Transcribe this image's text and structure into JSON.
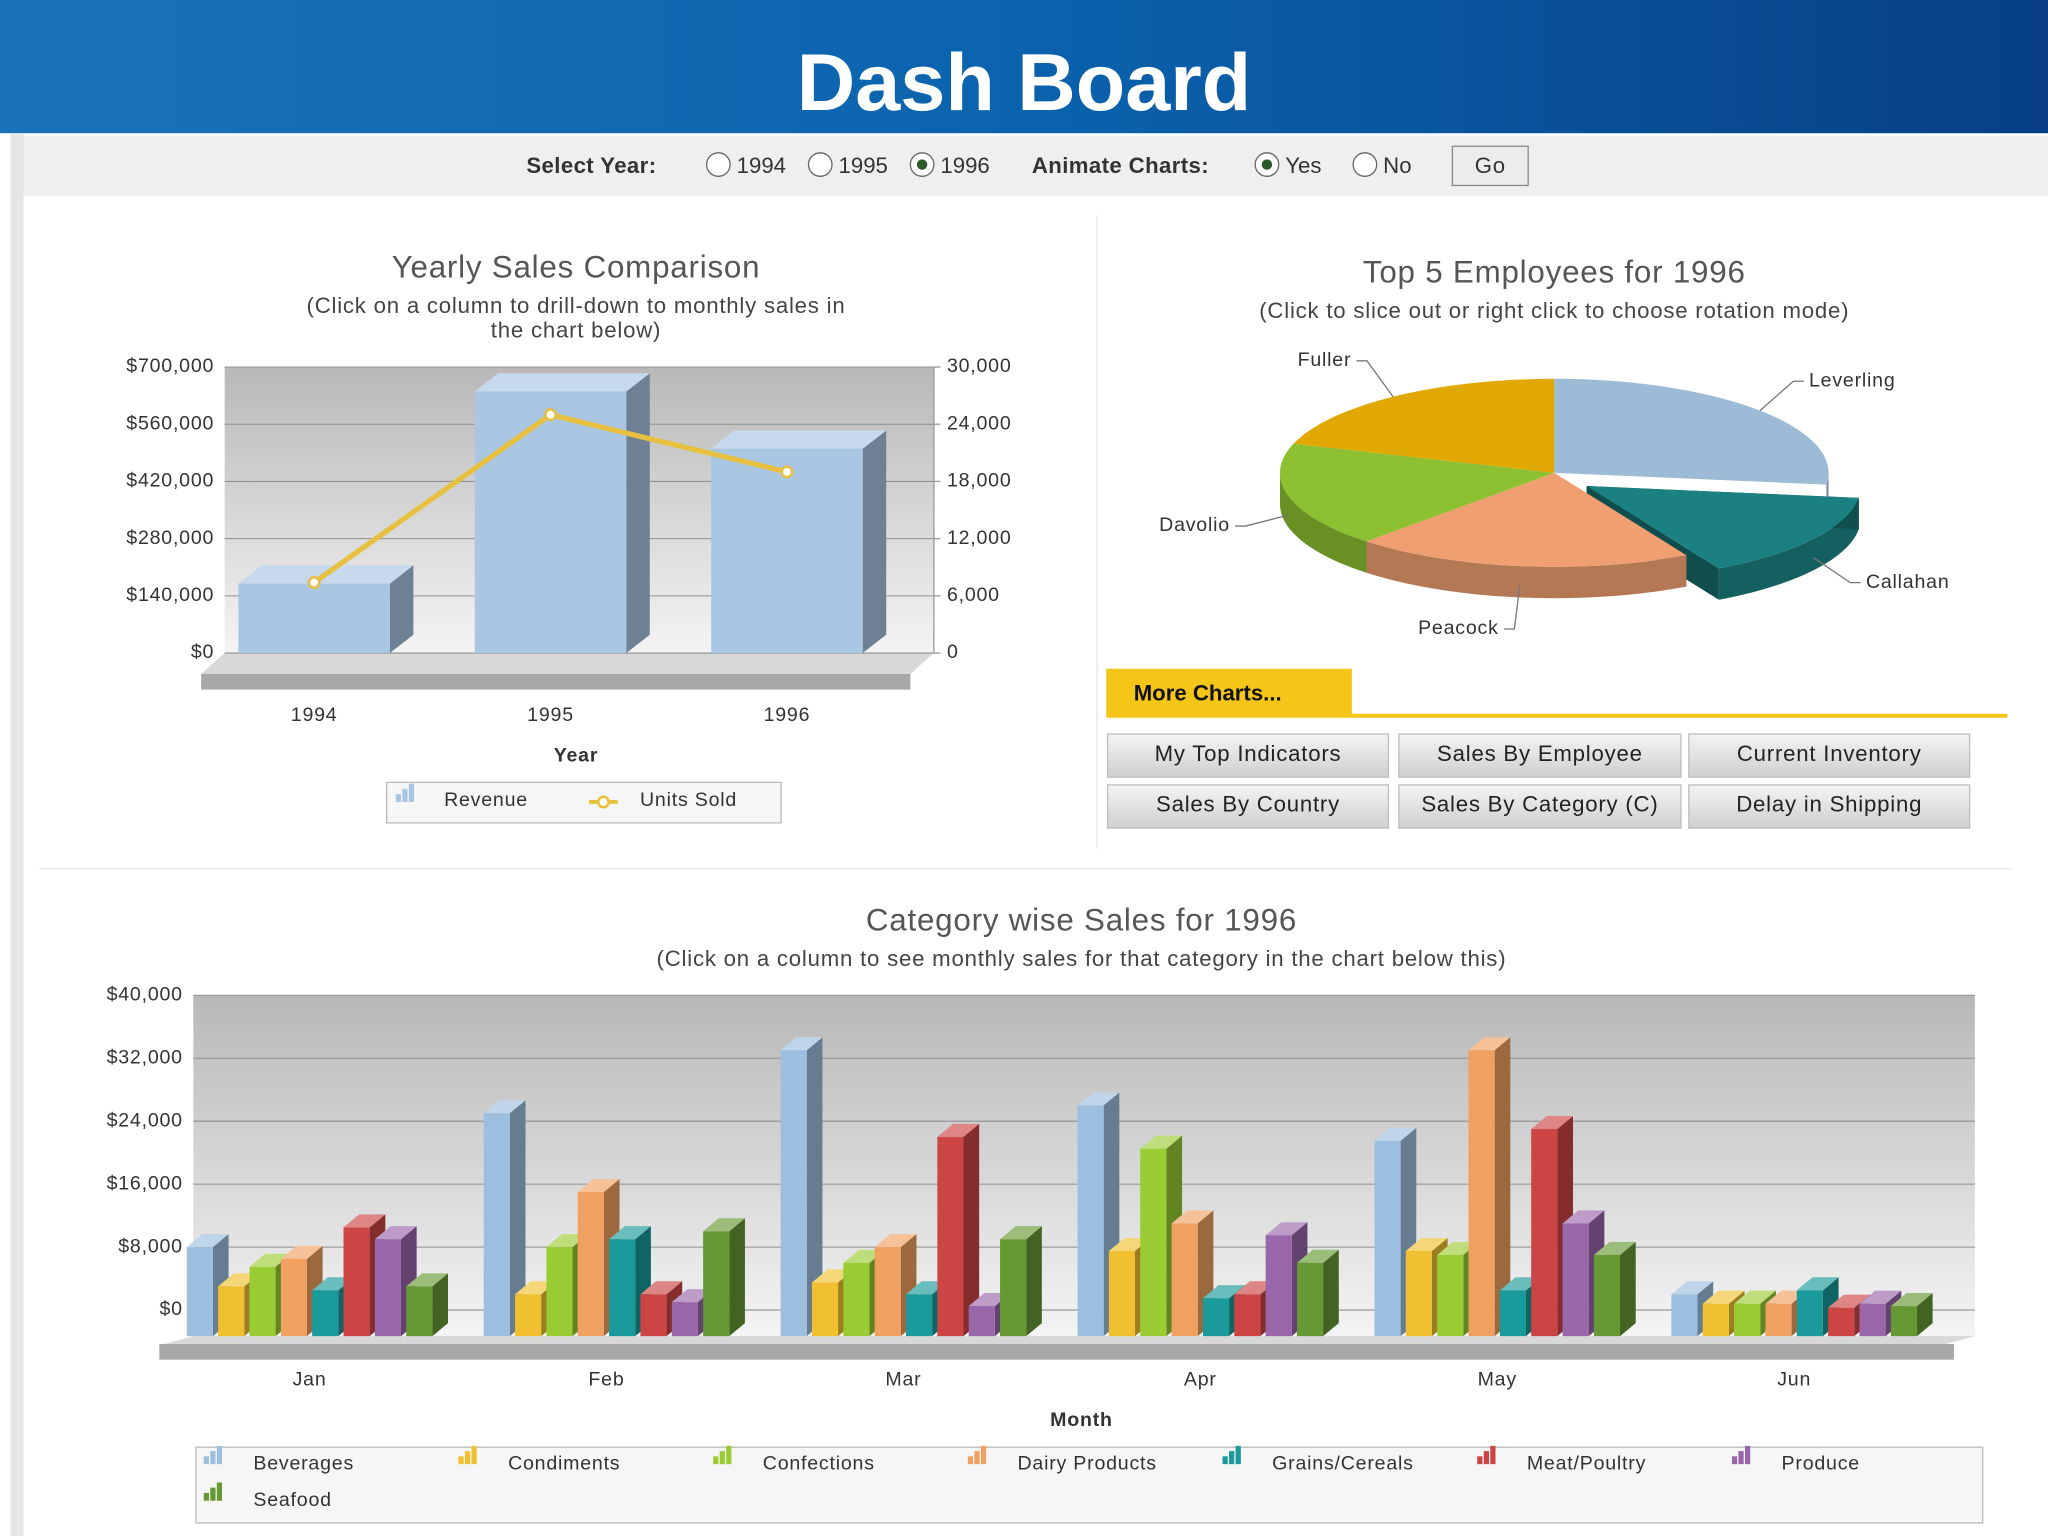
{
  "header": {
    "title": "Dash Board"
  },
  "controls": {
    "year_label": "Select Year:",
    "years": [
      "1994",
      "1995",
      "1996"
    ],
    "selected_year": 2,
    "animate_label": "Animate Charts:",
    "animate_options": [
      "Yes",
      "No"
    ],
    "animate_selected": 0,
    "go": "Go"
  },
  "chart_data": [
    {
      "type": "bar-line",
      "title": "Yearly Sales Comparison",
      "subtitle": [
        "(Click on a column to drill-down to monthly sales in",
        "the chart below)"
      ],
      "x_label": "Year",
      "categories": [
        "1994",
        "1995",
        "1996"
      ],
      "series": [
        {
          "name": "Revenue",
          "color": "#a9c6e3",
          "values": [
            170000,
            640000,
            500000
          ]
        },
        {
          "name": "Units Sold",
          "color": "#e8c040",
          "axis": "y2",
          "values": [
            7400,
            25000,
            19000
          ]
        }
      ],
      "ylim": [
        0,
        700000
      ],
      "yticks": [
        {
          "value": 0,
          "label": "$0"
        },
        {
          "value": 140000,
          "label": "$140,000"
        },
        {
          "value": 280000,
          "label": "$280,000"
        },
        {
          "value": 420000,
          "label": "$420,000"
        },
        {
          "value": 560000,
          "label": "$560,000"
        },
        {
          "value": 700000,
          "label": "$700,000"
        }
      ],
      "y2lim": [
        0,
        30000
      ],
      "y2ticks": [
        0,
        {
          "value": 6000,
          "label": "6,000"
        },
        {
          "value": 12000,
          "label": "12,000"
        },
        {
          "value": 18000,
          "label": "18,000"
        },
        {
          "value": 24000,
          "label": "24,000"
        },
        {
          "value": 30000,
          "label": "30,000"
        }
      ],
      "grid": true
    },
    {
      "type": "pie",
      "title": "Top 5 Employees for 1996",
      "subtitle": "(Click to slice out or right click to choose rotation mode)",
      "categories": [
        "Leverling",
        "Callahan",
        "Peacock",
        "Davolio",
        "Fuller"
      ],
      "values": [
        27,
        15,
        20,
        18,
        20
      ],
      "colors": [
        "#9dbbd6",
        "#1a8080",
        "#f0a070",
        "#8cc030",
        "#e0a800"
      ],
      "exploded_index": 1
    },
    {
      "type": "bar",
      "title": "Category wise Sales for 1996",
      "subtitle": "(Click on a column to see monthly sales for that category in the chart below this)",
      "x_label": "Month",
      "categories": [
        "Jan",
        "Feb",
        "Mar",
        "Apr",
        "May",
        "Jun"
      ],
      "series": [
        {
          "name": "Beverages",
          "color": "#9cbfdf",
          "values": [
            8000,
            25000,
            33000,
            26000,
            21500,
            2000
          ]
        },
        {
          "name": "Condiments",
          "color": "#f0c030",
          "values": [
            3000,
            2000,
            3500,
            7500,
            7500,
            800
          ]
        },
        {
          "name": "Confections",
          "color": "#99cc33",
          "values": [
            5500,
            8000,
            6000,
            20500,
            7000,
            800
          ]
        },
        {
          "name": "Dairy Products",
          "color": "#f0a060",
          "values": [
            6500,
            15000,
            8000,
            11000,
            33000,
            800
          ]
        },
        {
          "name": "Grains/Cereals",
          "color": "#1a9a9a",
          "values": [
            2500,
            9000,
            2000,
            1500,
            2500,
            2500
          ]
        },
        {
          "name": "Meat/Poultry",
          "color": "#cc4444",
          "values": [
            10500,
            2000,
            22000,
            2000,
            23000,
            300
          ]
        },
        {
          "name": "Produce",
          "color": "#9966aa",
          "values": [
            9000,
            1000,
            500,
            9500,
            11000,
            800
          ]
        },
        {
          "name": "Seafood",
          "color": "#669933",
          "values": [
            3000,
            10000,
            9000,
            6000,
            7000,
            500
          ]
        }
      ],
      "ylim": [
        0,
        40000
      ],
      "yticks": [
        {
          "value": 0,
          "label": "$0"
        },
        {
          "value": 8000,
          "label": "$8,000"
        },
        {
          "value": 16000,
          "label": "$16,000"
        },
        {
          "value": 24000,
          "label": "$24,000"
        },
        {
          "value": 32000,
          "label": "$32,000"
        },
        {
          "value": 40000,
          "label": "$40,000"
        }
      ],
      "grid": true
    }
  ],
  "more_charts": {
    "title": "More Charts...",
    "buttons": [
      "My Top Indicators",
      "Sales By Employee",
      "Current Inventory",
      "Sales By Country",
      "Sales By Category (C)",
      "Delay in Shipping"
    ]
  }
}
